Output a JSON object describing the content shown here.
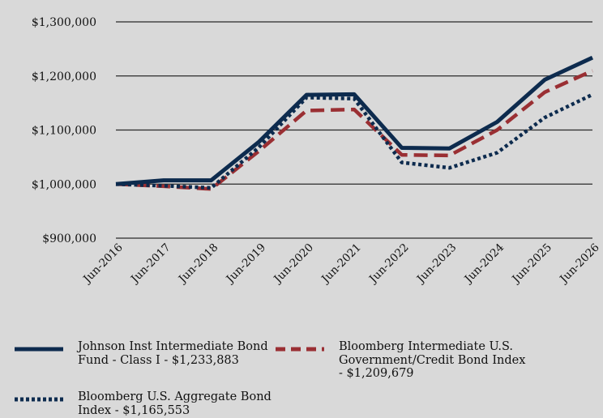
{
  "chart_data": {
    "type": "line",
    "x": [
      "Jun-2016",
      "Jun-2017",
      "Jun-2018",
      "Jun-2019",
      "Jun-2020",
      "Jun-2021",
      "Jun-2022",
      "Jun-2023",
      "Jun-2024",
      "Jun-2025",
      "Jun-2026"
    ],
    "yticks": [
      "$900,000",
      "$1,000,000",
      "$1,100,000",
      "$1,200,000",
      "$1,300,000"
    ],
    "ylim": [
      900000,
      1300000
    ],
    "grid": true,
    "legend_position": "bottom",
    "series": [
      {
        "name": "Johnson Inst Intermediate Bond Fund - Class I - $1,233,883",
        "style": "solid",
        "color": "#0d2b4e",
        "values": [
          1000000,
          1007000,
          1007000,
          1078000,
          1165000,
          1166000,
          1067000,
          1066000,
          1115000,
          1193000,
          1233883
        ]
      },
      {
        "name": "Bloomberg Intermediate U.S. Government/Credit Bond Index - $1,209,679",
        "style": "dashed",
        "color": "#9a2f33",
        "values": [
          1000000,
          996000,
          991000,
          1061000,
          1136000,
          1138000,
          1054000,
          1053000,
          1100000,
          1170000,
          1209679
        ]
      },
      {
        "name": "Bloomberg U.S. Aggregate Bond Index - $1,165,553",
        "style": "dotted",
        "color": "#0d2b4e",
        "values": [
          1000000,
          997000,
          993000,
          1068000,
          1160000,
          1158000,
          1040000,
          1030000,
          1058000,
          1123000,
          1165553
        ]
      }
    ]
  },
  "legend": {
    "items": [
      {
        "lines": [
          "Johnson Inst Intermediate Bond",
          "Fund - Class I - $1,233,883"
        ]
      },
      {
        "lines": [
          "Bloomberg Intermediate U.S.",
          "Government/Credit Bond Index",
          "- $1,209,679"
        ]
      },
      {
        "lines": [
          "Bloomberg U.S. Aggregate Bond",
          "Index - $1,165,553"
        ]
      }
    ]
  }
}
